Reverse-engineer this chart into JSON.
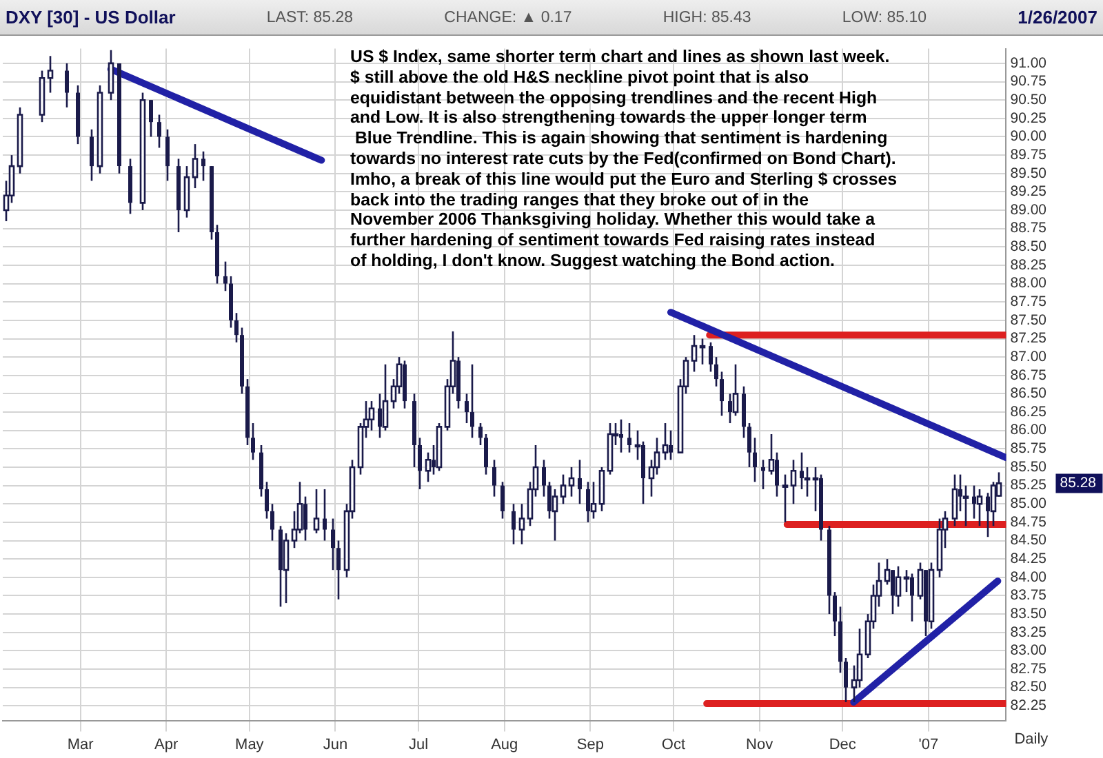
{
  "chart_data": {
    "type": "candlestick",
    "title": "DXY [30] - US Dollar",
    "annotations": [
      "LAST: 85.28",
      "CHANGE: ▲ 0.17",
      "HIGH: 85.43",
      "LOW: 85.10",
      "1/26/2007",
      "US $ Index, same shorter term chart and lines as shown last week.\n$ still above the old H&S neckline pivot point that is also\nequidistant between the opposing trendlines and the recent High\nand Low. It is also strengthening towards the upper longer term\n Blue Trendline. This is again showing that sentiment is hardening\ntowards no interest rate cuts by the Fed(confirmed on Bond Chart).\nImho, a break of this line would put the Euro and Sterling $ crosses\nback into the trading ranges that they broke out of in the\nNovember 2006 Thanksgiving holiday. Whether this would take a\nfurther hardening of sentiment towards Fed raising rates instead\nof holding, I don't know. Suggest watching the Bond action.",
      "85.28",
      "Daily"
    ],
    "x": [
      "2006-02-02",
      "2006-02-04",
      "2006-02-07",
      "2006-02-15",
      "2006-02-18",
      "2006-02-24",
      "2006-02-28",
      "2006-03-05",
      "2006-03-08",
      "2006-03-12",
      "2006-03-15",
      "2006-03-19",
      "2006-03-23",
      "2006-03-26",
      "2006-03-29",
      "2006-04-01",
      "2006-04-05",
      "2006-04-08",
      "2006-04-11",
      "2006-04-14",
      "2006-04-17",
      "2006-04-19",
      "2006-04-22",
      "2006-04-24",
      "2006-04-26",
      "2006-04-28",
      "2006-04-30",
      "2006-05-02",
      "2006-05-05",
      "2006-05-07",
      "2006-05-09",
      "2006-05-12",
      "2006-05-14",
      "2006-05-17",
      "2006-05-19",
      "2006-05-21",
      "2006-05-25",
      "2006-05-28",
      "2006-05-31",
      "2006-06-02",
      "2006-06-05",
      "2006-06-07",
      "2006-06-10",
      "2006-06-12",
      "2006-06-14",
      "2006-06-17",
      "2006-06-19",
      "2006-06-22",
      "2006-06-24",
      "2006-06-26",
      "2006-06-29",
      "2006-07-01",
      "2006-07-04",
      "2006-07-06",
      "2006-07-08",
      "2006-07-11",
      "2006-07-13",
      "2006-07-15",
      "2006-07-18",
      "2006-07-20",
      "2006-07-23",
      "2006-07-25",
      "2006-07-28",
      "2006-07-31",
      "2006-08-04",
      "2006-08-07",
      "2006-08-10",
      "2006-08-12",
      "2006-08-15",
      "2006-08-17",
      "2006-08-19",
      "2006-08-22",
      "2006-08-25",
      "2006-08-28",
      "2006-08-31",
      "2006-09-02",
      "2006-09-05",
      "2006-09-08",
      "2006-09-10",
      "2006-09-12",
      "2006-09-15",
      "2006-09-18",
      "2006-09-20",
      "2006-09-23",
      "2006-09-25",
      "2006-09-28",
      "2006-09-30",
      "2006-10-03",
      "2006-10-05",
      "2006-10-08",
      "2006-10-11",
      "2006-10-14",
      "2006-10-16",
      "2006-10-18",
      "2006-10-21",
      "2006-10-23",
      "2006-10-26",
      "2006-10-28",
      "2006-10-30",
      "2006-11-02",
      "2006-11-05",
      "2006-11-07",
      "2006-11-10",
      "2006-11-13",
      "2006-11-16",
      "2006-11-18",
      "2006-11-21",
      "2006-11-23",
      "2006-11-26",
      "2006-11-28",
      "2006-11-30",
      "2006-12-02",
      "2006-12-05",
      "2006-12-07",
      "2006-12-10",
      "2006-12-12",
      "2006-12-14",
      "2006-12-17",
      "2006-12-19",
      "2006-12-21",
      "2006-12-24",
      "2006-12-26",
      "2006-12-29",
      "2006-12-31",
      "2007-01-02",
      "2007-01-05",
      "2007-01-07",
      "2007-01-10",
      "2007-01-12",
      "2007-01-14",
      "2007-01-17",
      "2007-01-19",
      "2007-01-22",
      "2007-01-24",
      "2007-01-26"
    ],
    "ohlc": [
      [
        89.0,
        89.4,
        88.85,
        89.2
      ],
      [
        89.2,
        89.75,
        89.1,
        89.6
      ],
      [
        89.6,
        90.4,
        89.5,
        90.3
      ],
      [
        90.3,
        90.9,
        90.2,
        90.8
      ],
      [
        90.8,
        91.1,
        90.6,
        90.9
      ],
      [
        90.9,
        91.0,
        90.4,
        90.6
      ],
      [
        90.6,
        90.7,
        89.9,
        90.0
      ],
      [
        90.0,
        90.1,
        89.4,
        89.6
      ],
      [
        89.6,
        90.7,
        89.5,
        90.6
      ],
      [
        90.6,
        91.18,
        90.5,
        91.0
      ],
      [
        91.0,
        91.0,
        89.5,
        89.6
      ],
      [
        89.6,
        89.7,
        88.95,
        89.1
      ],
      [
        89.1,
        90.6,
        89.0,
        90.5
      ],
      [
        90.5,
        90.5,
        90.0,
        90.2
      ],
      [
        90.2,
        90.3,
        89.85,
        90.0
      ],
      [
        90.0,
        90.1,
        89.4,
        89.6
      ],
      [
        89.6,
        89.7,
        88.7,
        89.0
      ],
      [
        89.0,
        89.6,
        88.9,
        89.45
      ],
      [
        89.45,
        89.9,
        89.3,
        89.7
      ],
      [
        89.7,
        89.8,
        89.4,
        89.6
      ],
      [
        89.6,
        89.6,
        88.6,
        88.7
      ],
      [
        88.7,
        88.8,
        88.0,
        88.1
      ],
      [
        88.1,
        88.3,
        87.9,
        88.0
      ],
      [
        88.0,
        88.1,
        87.4,
        87.5
      ],
      [
        87.5,
        87.6,
        87.2,
        87.3
      ],
      [
        87.3,
        87.4,
        86.5,
        86.6
      ],
      [
        86.6,
        86.7,
        85.8,
        85.9
      ],
      [
        85.9,
        86.1,
        85.6,
        85.7
      ],
      [
        85.7,
        85.8,
        85.1,
        85.2
      ],
      [
        85.2,
        85.3,
        84.8,
        84.9
      ],
      [
        84.9,
        85.0,
        84.5,
        84.65
      ],
      [
        84.65,
        84.7,
        83.6,
        84.1
      ],
      [
        84.1,
        84.6,
        83.65,
        84.5
      ],
      [
        84.5,
        84.9,
        84.4,
        84.65
      ],
      [
        84.65,
        85.3,
        84.6,
        85.0
      ],
      [
        85.0,
        85.1,
        84.5,
        84.65
      ],
      [
        84.65,
        85.2,
        84.6,
        84.8
      ],
      [
        84.8,
        85.2,
        84.5,
        84.65
      ],
      [
        84.65,
        84.8,
        84.1,
        84.4
      ],
      [
        84.4,
        84.5,
        83.7,
        84.1
      ],
      [
        84.1,
        85.0,
        84.0,
        84.9
      ],
      [
        84.9,
        85.6,
        84.8,
        85.5
      ],
      [
        85.5,
        86.1,
        85.4,
        86.05
      ],
      [
        86.05,
        86.4,
        85.9,
        86.15
      ],
      [
        86.15,
        86.4,
        86.0,
        86.3
      ],
      [
        86.3,
        86.5,
        85.9,
        86.05
      ],
      [
        86.05,
        86.9,
        86.0,
        86.4
      ],
      [
        86.4,
        86.7,
        86.3,
        86.6
      ],
      [
        86.6,
        87.0,
        86.5,
        86.9
      ],
      [
        86.9,
        86.95,
        86.3,
        86.4
      ],
      [
        86.4,
        86.5,
        85.5,
        85.8
      ],
      [
        85.8,
        85.9,
        85.2,
        85.45
      ],
      [
        85.45,
        85.7,
        85.3,
        85.6
      ],
      [
        85.6,
        85.8,
        85.4,
        85.5
      ],
      [
        85.5,
        86.1,
        85.45,
        86.05
      ],
      [
        86.05,
        86.7,
        86.0,
        86.6
      ],
      [
        86.6,
        87.35,
        86.5,
        86.95
      ],
      [
        86.95,
        87.0,
        86.3,
        86.4
      ],
      [
        86.4,
        86.5,
        86.1,
        86.25
      ],
      [
        86.25,
        86.9,
        85.9,
        86.05
      ],
      [
        86.05,
        86.1,
        85.8,
        85.9
      ],
      [
        85.9,
        85.95,
        85.4,
        85.5
      ],
      [
        85.5,
        85.6,
        85.1,
        85.25
      ],
      [
        85.25,
        85.3,
        84.8,
        84.9
      ],
      [
        84.9,
        85.0,
        84.45,
        84.65
      ],
      [
        84.65,
        85.0,
        84.45,
        84.8
      ],
      [
        84.8,
        85.3,
        84.7,
        85.2
      ],
      [
        85.2,
        85.8,
        85.1,
        85.5
      ],
      [
        85.5,
        85.6,
        85.1,
        85.25
      ],
      [
        85.25,
        85.3,
        84.8,
        84.9
      ],
      [
        84.9,
        85.2,
        84.5,
        85.1
      ],
      [
        85.1,
        85.4,
        85.0,
        85.25
      ],
      [
        85.25,
        85.5,
        85.1,
        85.35
      ],
      [
        85.35,
        85.6,
        85.0,
        85.2
      ],
      [
        85.2,
        85.3,
        84.75,
        84.9
      ],
      [
        84.9,
        85.3,
        84.8,
        85.0
      ],
      [
        85.0,
        85.5,
        84.9,
        85.45
      ],
      [
        85.45,
        86.1,
        85.4,
        85.95
      ],
      [
        85.95,
        86.1,
        85.8,
        85.95
      ],
      [
        85.95,
        86.15,
        85.7,
        85.9
      ],
      [
        85.9,
        86.1,
        85.7,
        85.8
      ],
      [
        85.8,
        86.0,
        85.6,
        85.8
      ],
      [
        85.8,
        85.85,
        85.0,
        85.35
      ],
      [
        85.35,
        85.6,
        85.1,
        85.5
      ],
      [
        85.5,
        85.9,
        85.4,
        85.7
      ],
      [
        85.7,
        86.1,
        85.6,
        85.8
      ],
      [
        85.8,
        86.0,
        85.6,
        85.7
      ],
      [
        85.7,
        86.7,
        85.7,
        86.6
      ],
      [
        86.6,
        87.0,
        86.5,
        86.95
      ],
      [
        86.95,
        87.3,
        86.8,
        87.15
      ],
      [
        87.15,
        87.25,
        86.9,
        87.15
      ],
      [
        87.15,
        87.2,
        86.8,
        86.9
      ],
      [
        86.9,
        87.0,
        86.6,
        86.7
      ],
      [
        86.7,
        86.8,
        86.2,
        86.4
      ],
      [
        86.4,
        86.5,
        86.1,
        86.25
      ],
      [
        86.25,
        86.9,
        86.2,
        86.5
      ],
      [
        86.5,
        86.6,
        85.9,
        86.05
      ],
      [
        86.05,
        86.1,
        85.5,
        85.7
      ],
      [
        85.7,
        85.9,
        85.3,
        85.5
      ],
      [
        85.5,
        85.6,
        85.2,
        85.45
      ],
      [
        85.45,
        85.95,
        85.4,
        85.6
      ],
      [
        85.6,
        85.7,
        85.1,
        85.25
      ],
      [
        85.25,
        85.4,
        84.75,
        85.25
      ],
      [
        85.25,
        85.6,
        85.0,
        85.45
      ],
      [
        85.45,
        85.7,
        85.2,
        85.35
      ],
      [
        85.35,
        85.5,
        85.1,
        85.35
      ],
      [
        85.35,
        85.5,
        84.9,
        85.35
      ],
      [
        85.35,
        85.4,
        84.5,
        84.65
      ],
      [
        84.65,
        84.7,
        83.5,
        83.75
      ],
      [
        83.75,
        83.8,
        83.2,
        83.4
      ],
      [
        83.4,
        83.6,
        82.7,
        82.85
      ],
      [
        82.85,
        82.9,
        82.3,
        82.5
      ],
      [
        82.5,
        82.8,
        82.3,
        82.6
      ],
      [
        82.6,
        83.3,
        82.5,
        82.95
      ],
      [
        82.95,
        83.5,
        82.9,
        83.4
      ],
      [
        83.4,
        83.9,
        83.3,
        83.75
      ],
      [
        83.75,
        84.2,
        83.6,
        83.95
      ],
      [
        83.95,
        84.25,
        83.9,
        84.1
      ],
      [
        84.1,
        84.1,
        83.5,
        83.75
      ],
      [
        83.75,
        84.15,
        83.6,
        84.0
      ],
      [
        84.0,
        84.1,
        83.8,
        84.0
      ],
      [
        84.0,
        84.05,
        83.4,
        83.75
      ],
      [
        83.75,
        84.2,
        83.7,
        84.1
      ],
      [
        84.1,
        84.1,
        83.2,
        83.4
      ],
      [
        83.4,
        84.2,
        83.3,
        84.1
      ],
      [
        84.1,
        84.8,
        84.0,
        84.65
      ],
      [
        84.65,
        84.9,
        84.4,
        84.8
      ],
      [
        84.8,
        85.4,
        84.7,
        85.2
      ],
      [
        85.2,
        85.4,
        84.9,
        85.1
      ],
      [
        85.1,
        85.25,
        84.7,
        85.1
      ],
      [
        85.1,
        85.25,
        84.8,
        85.0
      ],
      [
        85.0,
        85.2,
        84.7,
        85.1
      ],
      [
        85.1,
        85.15,
        84.55,
        84.9
      ],
      [
        84.9,
        85.3,
        84.7,
        85.25
      ],
      [
        85.11,
        85.43,
        85.1,
        85.28
      ]
    ],
    "series": [
      {
        "type": "line",
        "color": "#2121a6",
        "x": [
          "2006-03-12",
          "2006-05-27"
        ],
        "values": [
          90.92,
          89.68
        ]
      },
      {
        "type": "line",
        "color": "#2121a6",
        "x": [
          "2006-09-30",
          "2007-01-29"
        ],
        "values": [
          87.61,
          85.63
        ]
      },
      {
        "type": "line",
        "color": "#2121a6",
        "x": [
          "2006-12-05",
          "2007-01-26"
        ],
        "values": [
          82.3,
          83.95
        ]
      },
      {
        "type": "line",
        "color": "#dd2020",
        "x": [
          "2006-10-14",
          "2007-01-29"
        ],
        "values": [
          87.3,
          87.3
        ]
      },
      {
        "type": "line",
        "color": "#dd2020",
        "x": [
          "2006-11-11",
          "2007-01-29"
        ],
        "values": [
          84.72,
          84.72
        ]
      },
      {
        "type": "line",
        "color": "#dd2020",
        "x": [
          "2006-10-13",
          "2007-01-29"
        ],
        "values": [
          82.28,
          82.28
        ]
      }
    ],
    "xlim": [
      "2006-02-01",
      "2007-01-29"
    ],
    "xticks": [
      {
        "value": "2006-03-01",
        "label": "Mar"
      },
      {
        "value": "2006-04-01",
        "label": "Apr"
      },
      {
        "value": "2006-05-01",
        "label": "May"
      },
      {
        "value": "2006-06-01",
        "label": "Jun"
      },
      {
        "value": "2006-07-01",
        "label": "Jul"
      },
      {
        "value": "2006-08-01",
        "label": "Aug"
      },
      {
        "value": "2006-09-01",
        "label": "Sep"
      },
      {
        "value": "2006-10-01",
        "label": "Oct"
      },
      {
        "value": "2006-11-01",
        "label": "Nov"
      },
      {
        "value": "2006-12-01",
        "label": "Dec"
      },
      {
        "value": "2007-01-01",
        "label": "'07"
      }
    ],
    "ylim": [
      82.05,
      91.2
    ],
    "yticks": [
      {
        "value": 82.25,
        "label": "82.25"
      },
      {
        "value": 82.5,
        "label": "82.50"
      },
      {
        "value": 82.75,
        "label": "82.75"
      },
      {
        "value": 83,
        "label": "83.00"
      },
      {
        "value": 83.25,
        "label": "83.25"
      },
      {
        "value": 83.5,
        "label": "83.50"
      },
      {
        "value": 83.75,
        "label": "83.75"
      },
      {
        "value": 84,
        "label": "84.00"
      },
      {
        "value": 84.25,
        "label": "84.25"
      },
      {
        "value": 84.5,
        "label": "84.50"
      },
      {
        "value": 84.75,
        "label": "84.75"
      },
      {
        "value": 85,
        "label": "85.00"
      },
      {
        "value": 85.25,
        "label": "85.25"
      },
      {
        "value": 85.5,
        "label": "85.50"
      },
      {
        "value": 85.75,
        "label": "85.75"
      },
      {
        "value": 86,
        "label": "86.00"
      },
      {
        "value": 86.25,
        "label": "86.25"
      },
      {
        "value": 86.5,
        "label": "86.50"
      },
      {
        "value": 86.75,
        "label": "86.75"
      },
      {
        "value": 87,
        "label": "87.00"
      },
      {
        "value": 87.25,
        "label": "87.25"
      },
      {
        "value": 87.5,
        "label": "87.50"
      },
      {
        "value": 87.75,
        "label": "87.75"
      },
      {
        "value": 88,
        "label": "88.00"
      },
      {
        "value": 88.25,
        "label": "88.25"
      },
      {
        "value": 88.5,
        "label": "88.50"
      },
      {
        "value": 88.75,
        "label": "88.75"
      },
      {
        "value": 89,
        "label": "89.00"
      },
      {
        "value": 89.25,
        "label": "89.25"
      },
      {
        "value": 89.5,
        "label": "89.50"
      },
      {
        "value": 89.75,
        "label": "89.75"
      },
      {
        "value": 90,
        "label": "90.00"
      },
      {
        "value": 90.25,
        "label": "90.25"
      },
      {
        "value": 90.5,
        "label": "90.50"
      },
      {
        "value": 90.75,
        "label": "90.75"
      },
      {
        "value": 91,
        "label": "91.00"
      }
    ],
    "grid": true,
    "legend": false,
    "marker": "none",
    "line_style": "solid"
  }
}
